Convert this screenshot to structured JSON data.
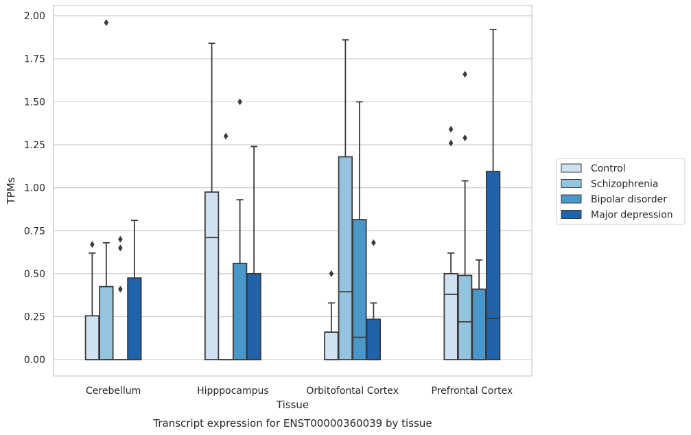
{
  "chart_data": {
    "type": "box",
    "title": "",
    "caption": "Transcript expression for ENST00000360039 by tissue",
    "xlabel": "Tissue",
    "ylabel": "TPMs",
    "ylim": [
      -0.095,
      2.06
    ],
    "yticks": [
      "0.00",
      "0.25",
      "0.50",
      "0.75",
      "1.00",
      "1.25",
      "1.50",
      "1.75",
      "2.00"
    ],
    "ytick_values": [
      0,
      0.25,
      0.5,
      0.75,
      1.0,
      1.25,
      1.5,
      1.75,
      2.0
    ],
    "grid": true,
    "legend_position": "right",
    "categories": [
      "Cerebellum",
      "Hipppocampus",
      "Orbitofontal Cortex",
      "Prefrontal Cortex"
    ],
    "series": [
      {
        "name": "Control",
        "color": "#d0e1f2",
        "boxes": [
          {
            "q1": 0,
            "median": 0,
            "q3": 0.255,
            "whisker_low": 0,
            "whisker_high": 0.62,
            "outliers": [
              0.67
            ]
          },
          {
            "q1": 0,
            "median": 0.71,
            "q3": 0.975,
            "whisker_low": 0,
            "whisker_high": 1.84,
            "outliers": []
          },
          {
            "q1": 0,
            "median": 0,
            "q3": 0.16,
            "whisker_low": 0,
            "whisker_high": 0.33,
            "outliers": [
              0.5
            ]
          },
          {
            "q1": 0,
            "median": 0.38,
            "q3": 0.5,
            "whisker_low": 0,
            "whisker_high": 0.62,
            "outliers": [
              1.26,
              1.34
            ]
          }
        ]
      },
      {
        "name": "Schizophrenia",
        "color": "#94c4df",
        "boxes": [
          {
            "q1": 0,
            "median": 0,
            "q3": 0.425,
            "whisker_low": 0,
            "whisker_high": 0.68,
            "outliers": [
              1.96
            ]
          },
          {
            "q1": 0,
            "median": 0,
            "q3": 0,
            "whisker_low": 0,
            "whisker_high": 0,
            "outliers": [
              1.3
            ]
          },
          {
            "q1": 0,
            "median": 0.395,
            "q3": 1.18,
            "whisker_low": 0,
            "whisker_high": 1.86,
            "outliers": []
          },
          {
            "q1": 0,
            "median": 0.22,
            "q3": 0.49,
            "whisker_low": 0,
            "whisker_high": 1.04,
            "outliers": [
              1.29,
              1.66
            ]
          }
        ]
      },
      {
        "name": "Bipolar disorder",
        "color": "#4a98c9",
        "boxes": [
          {
            "q1": 0,
            "median": 0,
            "q3": 0,
            "whisker_low": 0,
            "whisker_high": 0,
            "outliers": [
              0.41,
              0.65,
              0.7
            ]
          },
          {
            "q1": 0,
            "median": 0,
            "q3": 0.56,
            "whisker_low": 0,
            "whisker_high": 0.93,
            "outliers": [
              1.5
            ]
          },
          {
            "q1": 0,
            "median": 0.13,
            "q3": 0.815,
            "whisker_low": 0,
            "whisker_high": 1.5,
            "outliers": []
          },
          {
            "q1": 0,
            "median": 0,
            "q3": 0.41,
            "whisker_low": 0,
            "whisker_high": 0.58,
            "outliers": []
          }
        ]
      },
      {
        "name": "Major depression",
        "color": "#2163aa",
        "boxes": [
          {
            "q1": 0,
            "median": 0,
            "q3": 0.475,
            "whisker_low": 0,
            "whisker_high": 0.81,
            "outliers": []
          },
          {
            "q1": 0,
            "median": 0,
            "q3": 0.5,
            "whisker_low": 0,
            "whisker_high": 1.24,
            "outliers": []
          },
          {
            "q1": 0,
            "median": 0,
            "q3": 0.235,
            "whisker_low": 0,
            "whisker_high": 0.33,
            "outliers": [
              0.68
            ]
          },
          {
            "q1": 0,
            "median": 0.24,
            "q3": 1.095,
            "whisker_low": 0,
            "whisker_high": 1.92,
            "outliers": []
          }
        ]
      }
    ]
  }
}
